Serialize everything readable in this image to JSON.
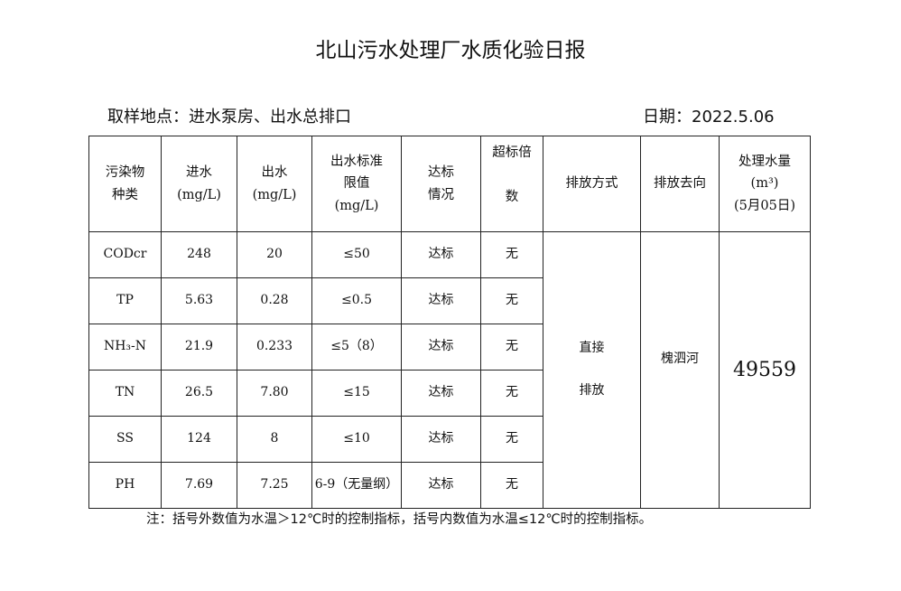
{
  "title": "北山污水处理厂水质化验日报",
  "location": "取样地点：进水泵房、出水总排口",
  "date": "日期：2022.5.06",
  "headers": {
    "pollutant": [
      "污染物",
      "种类"
    ],
    "inflow": [
      "进水",
      "(mg/L)"
    ],
    "outflow": [
      "出水",
      "(mg/L)"
    ],
    "limit": [
      "出水标准",
      "限值",
      "(mg/L)"
    ],
    "status": [
      "达标",
      "情况"
    ],
    "exceed": [
      "超标倍",
      "数"
    ],
    "method": "排放方式",
    "destination": "排放去向",
    "volume": [
      "处理水量",
      "(m³)",
      "(5月05日)"
    ]
  },
  "rows": [
    {
      "name": "CODcr",
      "in": "248",
      "out": "20",
      "limit": "≤50",
      "status": "达标",
      "exceed": "无"
    },
    {
      "name": "TP",
      "in": "5.63",
      "out": "0.28",
      "limit": "≤0.5",
      "status": "达标",
      "exceed": "无"
    },
    {
      "name": "NH₃-N",
      "in": "21.9",
      "out": "0.233",
      "limit": "≤5（8）",
      "status": "达标",
      "exceed": "无"
    },
    {
      "name": "TN",
      "in": "26.5",
      "out": "7.80",
      "limit": "≤15",
      "status": "达标",
      "exceed": "无"
    },
    {
      "name": "SS",
      "in": "124",
      "out": "8",
      "limit": "≤10",
      "status": "达标",
      "exceed": "无"
    },
    {
      "name": "PH",
      "in": "7.69",
      "out": "7.25",
      "limit": "6-9（无量纲）",
      "status": "达标",
      "exceed": "无"
    }
  ],
  "method": [
    "直接",
    "排放"
  ],
  "destination": "槐泗河",
  "volume": "49559",
  "note": "注：括号外数值为水温＞12℃时的控制指标，括号内数值为水温≤12℃时的控制指标。"
}
